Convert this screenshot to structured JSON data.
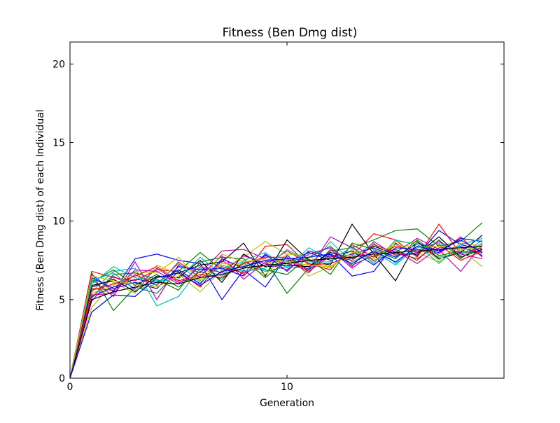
{
  "chart_data": {
    "type": "line",
    "title": "Fitness (Ben Dmg dist)",
    "xlabel": "Generation",
    "ylabel": "Fitness (Ben Dmg dist) of each Individual",
    "xlim": [
      0,
      20
    ],
    "ylim": [
      0,
      21.4
    ],
    "xticks": [
      0,
      10
    ],
    "yticks": [
      0,
      5,
      10,
      15,
      20
    ],
    "grid": false,
    "legend": "none",
    "palette": [
      "#0000ff",
      "#008000",
      "#ff0000",
      "#00bfbf",
      "#bf00bf",
      "#bfbf00",
      "#000000"
    ],
    "x": [
      0,
      1,
      2,
      3,
      4,
      5,
      6,
      7,
      8,
      9,
      10,
      11,
      12,
      13,
      14,
      15,
      16,
      17,
      18,
      19
    ],
    "series": [
      {
        "values": [
          0,
          6.6,
          5.5,
          7.6,
          7.9,
          7.5,
          7.3,
          5.0,
          6.9,
          5.8,
          7.8,
          6.9,
          7.9,
          6.5,
          6.8,
          8.6,
          7.8,
          9.4,
          8.5,
          8.2
        ]
      },
      {
        "values": [
          0,
          6.7,
          4.3,
          5.8,
          5.4,
          6.8,
          8.0,
          6.9,
          7.1,
          7.5,
          5.4,
          7.0,
          8.1,
          8.3,
          8.8,
          9.4,
          9.5,
          8.4,
          8.7,
          9.9
        ]
      },
      {
        "values": [
          0,
          6.8,
          6.4,
          6.2,
          6.9,
          6.8,
          5.8,
          7.5,
          6.6,
          8.4,
          8.5,
          7.2,
          7.3,
          7.8,
          9.2,
          8.8,
          7.7,
          9.8,
          7.9,
          8.3
        ]
      },
      {
        "values": [
          0,
          5.5,
          6.8,
          7.0,
          4.6,
          5.2,
          7.0,
          6.5,
          7.3,
          6.8,
          7.1,
          7.0,
          8.7,
          7.4,
          8.1,
          7.2,
          8.4,
          7.7,
          8.0,
          8.1
        ]
      },
      {
        "values": [
          0,
          6.3,
          5.2,
          7.4,
          5.0,
          7.2,
          6.7,
          8.1,
          8.2,
          7.6,
          7.3,
          6.9,
          9.0,
          8.3,
          7.5,
          8.0,
          8.9,
          8.2,
          6.8,
          8.5
        ]
      },
      {
        "values": [
          0,
          4.5,
          6.1,
          5.4,
          7.2,
          6.6,
          5.5,
          6.9,
          7.7,
          8.7,
          7.9,
          6.5,
          7.1,
          8.0,
          7.6,
          8.5,
          8.0,
          7.4,
          8.2,
          7.1
        ]
      },
      {
        "values": [
          0,
          5.9,
          6.2,
          6.0,
          6.4,
          6.7,
          7.2,
          7.4,
          8.6,
          6.5,
          8.8,
          7.5,
          7.2,
          9.8,
          7.9,
          6.2,
          8.7,
          7.6,
          8.0,
          9.1
        ]
      },
      {
        "values": [
          0,
          5.2,
          5.8,
          6.3,
          6.1,
          6.9,
          6.0,
          7.6,
          7.0,
          7.8,
          7.4,
          8.0,
          7.5,
          7.9,
          8.3,
          7.7,
          8.6,
          8.1,
          8.4,
          7.8
        ]
      },
      {
        "values": [
          0,
          6.1,
          6.9,
          5.9,
          6.6,
          5.8,
          6.8,
          6.3,
          7.4,
          6.9,
          6.6,
          7.7,
          8.4,
          7.2,
          7.8,
          8.2,
          7.5,
          8.8,
          7.6,
          8.6
        ]
      },
      {
        "values": [
          0,
          5.7,
          5.6,
          6.6,
          5.9,
          7.4,
          6.4,
          7.1,
          6.7,
          7.2,
          8.1,
          7.3,
          6.9,
          8.5,
          7.7,
          8.4,
          8.1,
          7.9,
          9.0,
          7.7
        ]
      },
      {
        "values": [
          0,
          6.0,
          7.1,
          6.4,
          6.2,
          6.3,
          7.7,
          6.6,
          7.5,
          8.0,
          7.0,
          8.3,
          7.6,
          7.7,
          8.6,
          7.3,
          8.3,
          8.6,
          7.8,
          8.8
        ]
      },
      {
        "values": [
          0,
          4.9,
          6.5,
          5.7,
          7.0,
          6.1,
          6.5,
          7.8,
          6.3,
          7.4,
          7.6,
          6.7,
          8.2,
          7.0,
          8.0,
          8.1,
          7.3,
          8.3,
          8.3,
          8.0
        ]
      },
      {
        "values": [
          0,
          5.4,
          5.9,
          6.8,
          6.7,
          7.7,
          6.2,
          7.3,
          7.2,
          6.6,
          7.9,
          7.8,
          7.0,
          8.2,
          7.4,
          8.7,
          8.6,
          7.5,
          8.6,
          8.4
        ]
      },
      {
        "values": [
          0,
          5.8,
          6.3,
          5.5,
          6.5,
          6.4,
          7.5,
          6.1,
          7.9,
          7.1,
          7.2,
          7.1,
          8.0,
          7.6,
          8.4,
          7.9,
          7.9,
          9.0,
          7.7,
          8.2
        ]
      },
      {
        "values": [
          0,
          6.4,
          5.7,
          6.1,
          5.7,
          7.1,
          6.9,
          7.0,
          6.5,
          7.9,
          6.8,
          8.1,
          7.7,
          8.1,
          7.2,
          8.3,
          8.2,
          8.0,
          8.9,
          8.7
        ]
      },
      {
        "values": [
          0,
          5.1,
          6.6,
          6.7,
          6.3,
          5.6,
          7.4,
          7.7,
          7.6,
          6.4,
          7.5,
          7.6,
          6.6,
          8.6,
          8.2,
          7.6,
          8.8,
          7.8,
          8.1,
          7.9
        ]
      },
      {
        "values": [
          0,
          5.6,
          6.0,
          6.5,
          7.1,
          6.2,
          6.6,
          6.4,
          7.3,
          7.7,
          7.7,
          6.8,
          7.8,
          7.5,
          8.5,
          8.0,
          7.6,
          8.5,
          7.5,
          8.1
        ]
      },
      {
        "values": [
          0,
          6.2,
          6.7,
          5.6,
          6.0,
          7.3,
          6.1,
          7.2,
          6.8,
          7.0,
          8.2,
          7.4,
          7.4,
          8.4,
          7.3,
          8.8,
          8.5,
          7.3,
          8.5,
          8.9
        ]
      },
      {
        "values": [
          0,
          5.3,
          5.4,
          6.9,
          6.8,
          6.0,
          7.1,
          6.7,
          7.8,
          7.3,
          6.9,
          7.9,
          8.3,
          7.1,
          8.7,
          7.8,
          8.0,
          8.7,
          7.9,
          7.6
        ]
      },
      {
        "values": [
          0,
          6.5,
          6.2,
          6.0,
          5.8,
          6.5,
          6.3,
          7.9,
          7.4,
          7.6,
          7.4,
          7.2,
          7.1,
          8.0,
          7.9,
          8.5,
          8.3,
          8.4,
          8.2,
          8.3
        ]
      },
      {
        "values": [
          0,
          5.0,
          5.5,
          5.8,
          6.1,
          6.0,
          6.4,
          6.6,
          7.0,
          7.2,
          7.3,
          7.5,
          7.6,
          7.7,
          7.9,
          8.0,
          8.1,
          8.2,
          8.3,
          8.4
        ]
      },
      {
        "values": [
          0,
          4.2,
          5.3,
          5.2,
          6.4,
          6.7,
          5.9,
          6.8,
          7.1,
          7.5,
          7.6,
          7.7,
          7.9,
          7.3,
          8.1,
          7.4,
          8.4,
          8.1,
          8.8,
          8.0
        ]
      }
    ]
  }
}
